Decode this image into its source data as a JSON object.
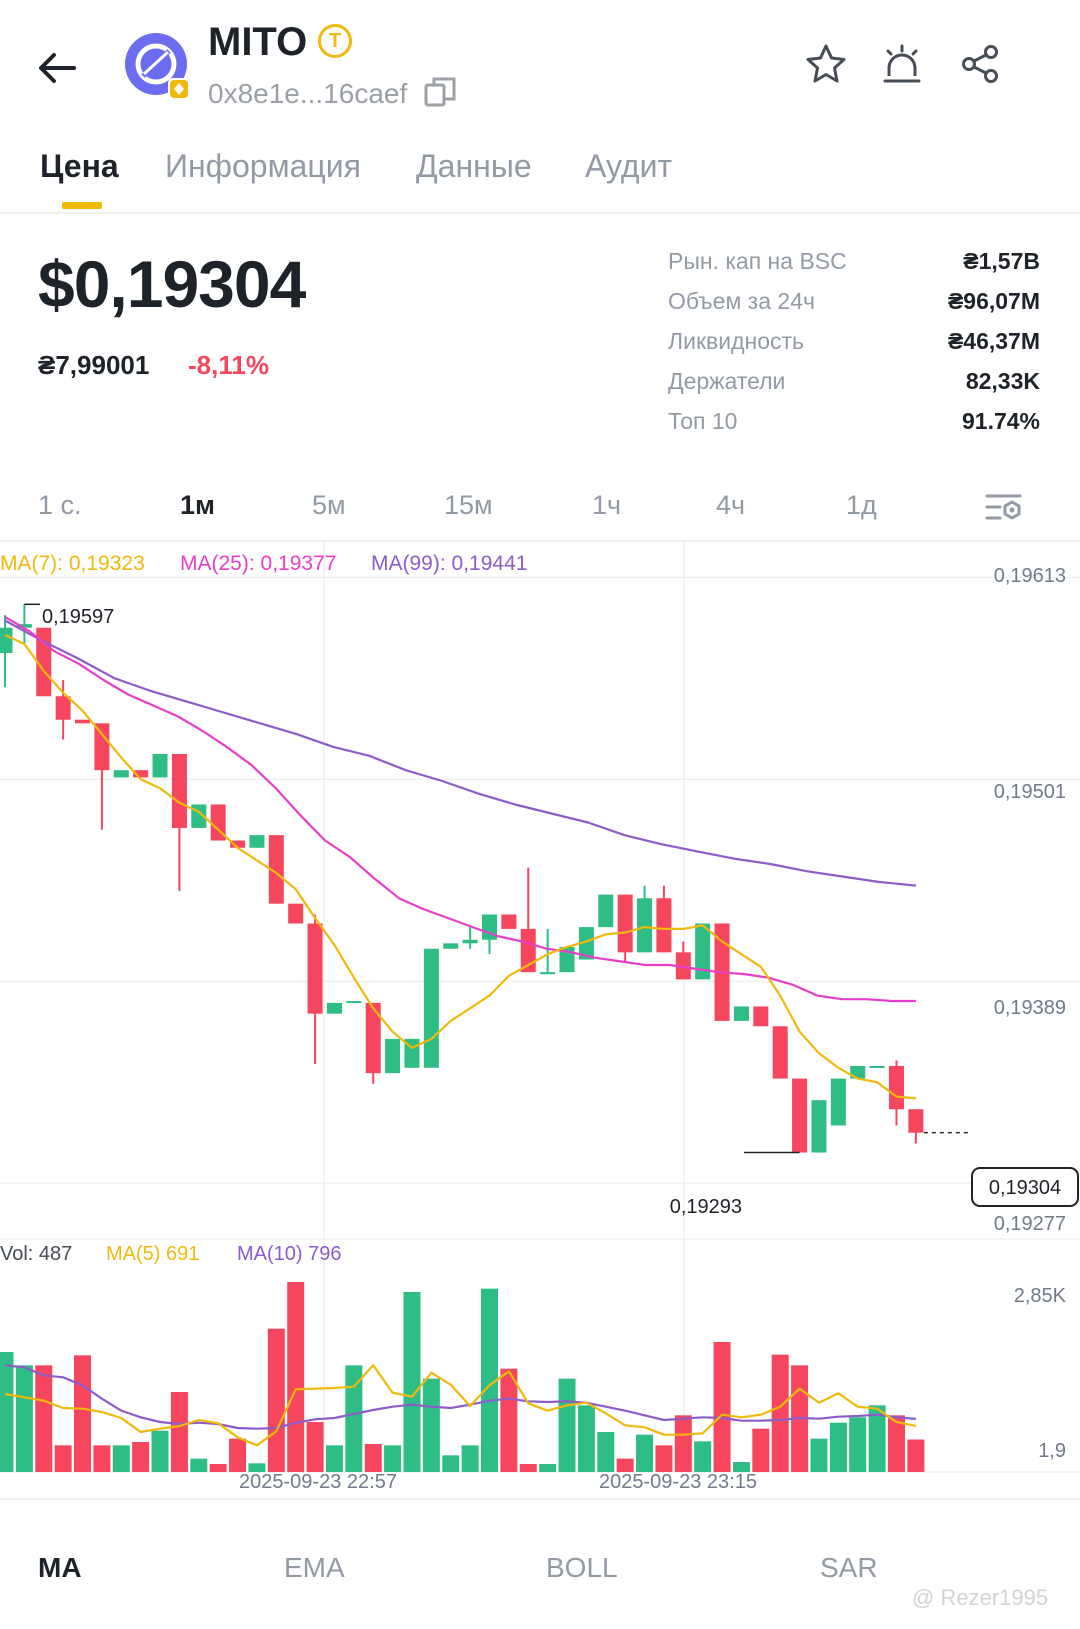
{
  "header": {
    "token_name": "MITO",
    "badge_letter": "T",
    "address": "0x8e1e...16caef"
  },
  "tabs": [
    {
      "label": "Цена",
      "active": true
    },
    {
      "label": "Информация",
      "active": false
    },
    {
      "label": "Данные",
      "active": false
    },
    {
      "label": "Аудит",
      "active": false
    }
  ],
  "price": {
    "main": "$0,19304",
    "secondary": "₴7,99001",
    "change": "-8,11%"
  },
  "stats": [
    {
      "label": "Рын. кап на BSC",
      "value": "₴1,57B"
    },
    {
      "label": "Объем за 24ч",
      "value": "₴96,07M"
    },
    {
      "label": "Ликвидность",
      "value": "₴46,37M"
    },
    {
      "label": "Держатели",
      "value": "82,33K"
    },
    {
      "label": "Топ 10",
      "value": "91.74%"
    }
  ],
  "intervals": [
    {
      "label": "1 с.",
      "active": false
    },
    {
      "label": "1м",
      "active": true
    },
    {
      "label": "5м",
      "active": false
    },
    {
      "label": "15м",
      "active": false
    },
    {
      "label": "1ч",
      "active": false
    },
    {
      "label": "4ч",
      "active": false
    },
    {
      "label": "1д",
      "active": false
    }
  ],
  "chart_data": {
    "type": "candlestick",
    "ma_legend": {
      "ma7": "MA(7): 0,19323",
      "ma25": "MA(25): 0,19377",
      "ma99": "MA(99): 0,19441"
    },
    "y_ticks": [
      "0,19613",
      "0,19501",
      "0,19389",
      "0,19277"
    ],
    "y_tick_values": [
      0.19613,
      0.19501,
      0.19389,
      0.19277
    ],
    "ylim": [
      0.1927,
      0.19626
    ],
    "high_label": "0,19597",
    "low_label": "0,19293",
    "current_price_label": "0,19304",
    "current_price": 0.19304,
    "candles": [
      {
        "o": 0.1957,
        "h": 0.19591,
        "c": 0.19584,
        "l": 0.19551
      },
      {
        "o": 0.19584,
        "h": 0.19597,
        "c": 0.19586,
        "l": 0.19575
      },
      {
        "o": 0.19584,
        "h": 0.19584,
        "c": 0.19546,
        "l": 0.19546
      },
      {
        "o": 0.19546,
        "h": 0.19555,
        "c": 0.19533,
        "l": 0.19522
      },
      {
        "o": 0.19533,
        "h": 0.19533,
        "c": 0.19531,
        "l": 0.19531
      },
      {
        "o": 0.19531,
        "h": 0.19531,
        "c": 0.19505,
        "l": 0.19472
      },
      {
        "o": 0.19501,
        "h": 0.19505,
        "c": 0.19505,
        "l": 0.19501
      },
      {
        "o": 0.19505,
        "h": 0.19505,
        "c": 0.19501,
        "l": 0.19501
      },
      {
        "o": 0.19501,
        "h": 0.19514,
        "c": 0.19514,
        "l": 0.19501
      },
      {
        "o": 0.19514,
        "h": 0.19514,
        "c": 0.19473,
        "l": 0.19438
      },
      {
        "o": 0.19473,
        "h": 0.19486,
        "c": 0.19486,
        "l": 0.19473
      },
      {
        "o": 0.19486,
        "h": 0.19486,
        "c": 0.19466,
        "l": 0.19466
      },
      {
        "o": 0.19466,
        "h": 0.19466,
        "c": 0.19462,
        "l": 0.19462
      },
      {
        "o": 0.19462,
        "h": 0.19469,
        "c": 0.19469,
        "l": 0.19462
      },
      {
        "o": 0.19469,
        "h": 0.19469,
        "c": 0.19431,
        "l": 0.19431
      },
      {
        "o": 0.19431,
        "h": 0.19431,
        "c": 0.1942,
        "l": 0.1942
      },
      {
        "o": 0.1942,
        "h": 0.19425,
        "c": 0.1937,
        "l": 0.19342
      },
      {
        "o": 0.1937,
        "h": 0.19376,
        "c": 0.19376,
        "l": 0.1937
      },
      {
        "o": 0.19376,
        "h": 0.19377,
        "c": 0.19377,
        "l": 0.19376
      },
      {
        "o": 0.19376,
        "h": 0.19376,
        "c": 0.19337,
        "l": 0.19331
      },
      {
        "o": 0.19337,
        "h": 0.19356,
        "c": 0.19356,
        "l": 0.19337
      },
      {
        "o": 0.1934,
        "h": 0.19356,
        "c": 0.19356,
        "l": 0.1934
      },
      {
        "o": 0.1934,
        "h": 0.19406,
        "c": 0.19406,
        "l": 0.1934
      },
      {
        "o": 0.19406,
        "h": 0.19409,
        "c": 0.19409,
        "l": 0.19406
      },
      {
        "o": 0.19409,
        "h": 0.19418,
        "c": 0.19411,
        "l": 0.19406
      },
      {
        "o": 0.19411,
        "h": 0.19425,
        "c": 0.19425,
        "l": 0.19403
      },
      {
        "o": 0.19425,
        "h": 0.19425,
        "c": 0.19417,
        "l": 0.19417
      },
      {
        "o": 0.19417,
        "h": 0.19451,
        "c": 0.19393,
        "l": 0.19393
      },
      {
        "o": 0.19393,
        "h": 0.19417,
        "c": 0.19393,
        "l": 0.19393
      },
      {
        "o": 0.19393,
        "h": 0.19407,
        "c": 0.19407,
        "l": 0.19393
      },
      {
        "o": 0.194,
        "h": 0.19418,
        "c": 0.19418,
        "l": 0.194
      },
      {
        "o": 0.19418,
        "h": 0.19436,
        "c": 0.19436,
        "l": 0.19418
      },
      {
        "o": 0.19436,
        "h": 0.19436,
        "c": 0.19404,
        "l": 0.19398
      },
      {
        "o": 0.19404,
        "h": 0.19441,
        "c": 0.19434,
        "l": 0.19404
      },
      {
        "o": 0.19434,
        "h": 0.19441,
        "c": 0.19404,
        "l": 0.19404
      },
      {
        "o": 0.19404,
        "h": 0.1941,
        "c": 0.19389,
        "l": 0.19389
      },
      {
        "o": 0.19389,
        "h": 0.1942,
        "c": 0.1942,
        "l": 0.19389
      },
      {
        "o": 0.1942,
        "h": 0.1942,
        "c": 0.19366,
        "l": 0.19366
      },
      {
        "o": 0.19366,
        "h": 0.19374,
        "c": 0.19374,
        "l": 0.19366
      },
      {
        "o": 0.19374,
        "h": 0.19374,
        "c": 0.19363,
        "l": 0.19363
      },
      {
        "o": 0.19363,
        "h": 0.19363,
        "c": 0.19334,
        "l": 0.19334
      },
      {
        "o": 0.19334,
        "h": 0.19334,
        "c": 0.19293,
        "l": 0.19293
      },
      {
        "o": 0.19293,
        "h": 0.19322,
        "c": 0.19322,
        "l": 0.19293
      },
      {
        "o": 0.19308,
        "h": 0.19334,
        "c": 0.19334,
        "l": 0.19308
      },
      {
        "o": 0.19334,
        "h": 0.19341,
        "c": 0.19341,
        "l": 0.19334
      },
      {
        "o": 0.1934,
        "h": 0.19341,
        "c": 0.19341,
        "l": 0.1934
      },
      {
        "o": 0.19341,
        "h": 0.19344,
        "c": 0.19317,
        "l": 0.19308
      },
      {
        "o": 0.19317,
        "h": 0.19317,
        "c": 0.19304,
        "l": 0.19298
      }
    ],
    "ma7": [
      0.1958,
      0.19575,
      0.1956,
      0.19548,
      0.19538,
      0.19525,
      0.19512,
      0.195,
      0.19495,
      0.19487,
      0.19482,
      0.19472,
      0.19462,
      0.19455,
      0.19448,
      0.19439,
      0.19423,
      0.19408,
      0.1939,
      0.19373,
      0.1936,
      0.19351,
      0.19356,
      0.19366,
      0.19373,
      0.1938,
      0.19391,
      0.19397,
      0.19403,
      0.19407,
      0.1941,
      0.19414,
      0.19415,
      0.19418,
      0.19417,
      0.19417,
      0.19419,
      0.1941,
      0.19403,
      0.19396,
      0.1938,
      0.1936,
      0.19348,
      0.1934,
      0.19334,
      0.19332,
      0.19324,
      0.19323
    ],
    "ma25": [
      0.1959,
      0.19582,
      0.19571,
      0.19564,
      0.19555,
      0.19547,
      0.19541,
      0.19535,
      0.19527,
      0.19518,
      0.19508,
      0.19495,
      0.1948,
      0.19466,
      0.19457,
      0.19445,
      0.19434,
      0.19428,
      0.19423,
      0.19418,
      0.19413,
      0.1941,
      0.19406,
      0.19404,
      0.19401,
      0.19399,
      0.19397,
      0.19397,
      0.19395,
      0.19393,
      0.19392,
      0.1939,
      0.19386,
      0.1938,
      0.19378,
      0.19378,
      0.19377,
      0.19377
    ],
    "ma99": [
      0.19588,
      0.19577,
      0.19567,
      0.19556,
      0.19549,
      0.19543,
      0.19537,
      0.19531,
      0.19525,
      0.19518,
      0.19513,
      0.19505,
      0.19499,
      0.19492,
      0.19486,
      0.19481,
      0.19476,
      0.19469,
      0.19464,
      0.1946,
      0.19456,
      0.19453,
      0.19449,
      0.19446,
      0.19443,
      0.19441
    ],
    "volume_legend": {
      "vol": "Vol: 487",
      "ma5": "MA(5) 691",
      "ma10": "MA(10) 796"
    },
    "volume_ticks": [
      "2,85K",
      "1,9"
    ],
    "volume_ylim": [
      0,
      2850
    ],
    "volumes": [
      1800,
      1600,
      1600,
      400,
      1750,
      400,
      400,
      450,
      620,
      1200,
      200,
      120,
      500,
      130,
      2150,
      2850,
      750,
      400,
      1600,
      420,
      400,
      2700,
      1400,
      250,
      400,
      2750,
      1550,
      120,
      120,
      1400,
      1000,
      600,
      200,
      560,
      400,
      850,
      460,
      1950,
      150,
      650,
      1760,
      1600,
      500,
      740,
      820,
      1000,
      850,
      487
    ],
    "vol_ma5": [
      1170,
      1120,
      1070,
      960,
      950,
      900,
      810,
      600,
      650,
      690,
      780,
      730,
      520,
      400,
      610,
      1240,
      1250,
      1260,
      1280,
      1600,
      1190,
      1130,
      1490,
      1310,
      990,
      1300,
      1510,
      1030,
      920,
      1000,
      1040,
      880,
      700,
      670,
      560,
      560,
      580,
      860,
      820,
      860,
      980,
      1250,
      1040,
      1180,
      980,
      950,
      750,
      691
    ],
    "vol_ma10": [
      1600,
      1570,
      1450,
      1420,
      1300,
      1100,
      920,
      820,
      750,
      720,
      740,
      720,
      660,
      650,
      660,
      740,
      790,
      810,
      870,
      930,
      980,
      1010,
      980,
      960,
      1010,
      1070,
      1100,
      1060,
      1050,
      1060,
      1040,
      980,
      920,
      850,
      780,
      800,
      820,
      810,
      770,
      770,
      780,
      810,
      800,
      830,
      840,
      860,
      820,
      796
    ],
    "x_labels": [
      "2025-09-23 22:57",
      "2025-09-23 23:15"
    ]
  },
  "indicators": [
    {
      "label": "MA",
      "active": true
    },
    {
      "label": "EMA",
      "active": false
    },
    {
      "label": "BOLL",
      "active": false
    },
    {
      "label": "SAR",
      "active": false
    }
  ],
  "watermark": "@ Rezer1995",
  "colors": {
    "up": "#2ebd85",
    "down": "#f6465d",
    "ma7": "#f0b90b",
    "ma25": "#e93ec8",
    "ma99": "#8e5cc9",
    "accent": "#f0b90b"
  }
}
